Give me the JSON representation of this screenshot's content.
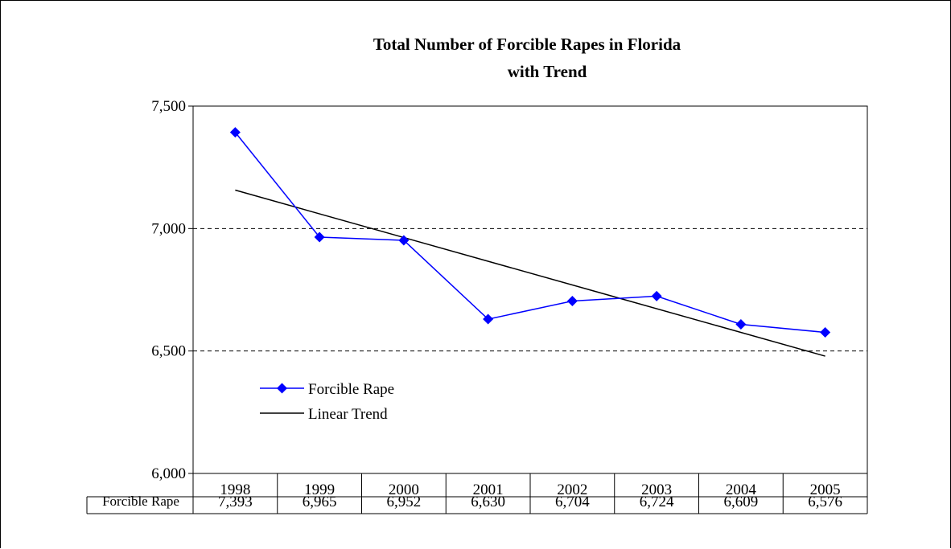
{
  "chart_data": {
    "type": "line",
    "title": [
      "Total Number of Forcible Rapes in Florida",
      "with Trend"
    ],
    "xlabel": "",
    "ylabel": "",
    "categories": [
      "1998",
      "1999",
      "2000",
      "2001",
      "2002",
      "2003",
      "2004",
      "2005"
    ],
    "ylim": [
      6000,
      7500
    ],
    "y_ticks": [
      6000,
      6500,
      7000,
      7500
    ],
    "y_tick_labels": [
      "6,000",
      "6,500",
      "7,000",
      "7,500"
    ],
    "grid": "dashed horizontal at 6,500 and 7,000",
    "legend_position": "lower-left inside plot",
    "series": [
      {
        "name": "Forcible Rape",
        "values": [
          7393,
          6965,
          6952,
          6630,
          6704,
          6724,
          6609,
          6576
        ],
        "color": "#0000ff",
        "marker": "diamond"
      },
      {
        "name": "Linear Trend",
        "trend_endpoints": [
          7157,
          6479
        ],
        "color": "#000000"
      }
    ],
    "data_table": {
      "row_label": "Forcible Rape",
      "values": [
        "7,393",
        "6,965",
        "6,952",
        "6,630",
        "6,704",
        "6,724",
        "6,609",
        "6,576"
      ]
    }
  }
}
